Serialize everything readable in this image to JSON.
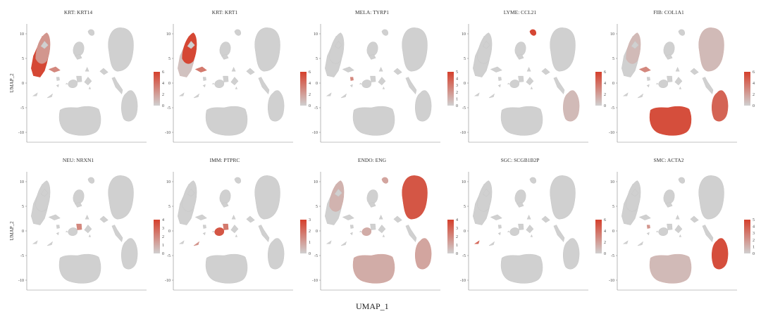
{
  "chart_data": [
    {
      "type": "scatter",
      "title": "KRT: KRT14",
      "ylabel": "UMAP_2",
      "xlim": [
        -15,
        12
      ],
      "ylim": [
        -12,
        12
      ],
      "yticks": [
        10,
        5,
        0,
        -5,
        -10
      ],
      "xticks": [],
      "colorbar_ticks": [
        6,
        4,
        2,
        0
      ],
      "highlight": [
        {
          "cluster": "krt_basal",
          "intensity": 0.95
        },
        {
          "cluster": "krt_spin",
          "intensity": 0.4
        },
        {
          "cluster": "krt_small",
          "intensity": 0.5
        }
      ]
    },
    {
      "type": "scatter",
      "title": "KRT: KRT1",
      "ylabel": "",
      "xlim": [
        -15,
        12
      ],
      "ylim": [
        -12,
        12
      ],
      "yticks": [
        10,
        5,
        0,
        -5,
        -10
      ],
      "xticks": [],
      "colorbar_ticks": [
        6,
        4,
        2,
        0
      ],
      "highlight": [
        {
          "cluster": "krt_spin",
          "intensity": 0.95
        },
        {
          "cluster": "krt_small",
          "intensity": 0.6
        },
        {
          "cluster": "krt_basal",
          "intensity": 0.1
        }
      ]
    },
    {
      "type": "scatter",
      "title": "MELA: TYRP1",
      "ylabel": "",
      "xlim": [
        -15,
        12
      ],
      "ylim": [
        -12,
        12
      ],
      "yticks": [
        10,
        5,
        0,
        -5,
        -10
      ],
      "xticks": [],
      "colorbar_ticks": [
        5,
        4,
        3,
        2,
        1,
        0
      ],
      "highlight": [
        {
          "cluster": "mela",
          "intensity": 0.5
        }
      ]
    },
    {
      "type": "scatter",
      "title": "LYME: CCL21",
      "ylabel": "",
      "xlim": [
        -15,
        12
      ],
      "ylim": [
        -12,
        12
      ],
      "yticks": [
        10,
        5,
        0,
        -5,
        -10
      ],
      "xticks": [],
      "colorbar_ticks": [
        6,
        4,
        2,
        0
      ],
      "highlight": [
        {
          "cluster": "lyme",
          "intensity": 0.95
        },
        {
          "cluster": "smc",
          "intensity": 0.15
        }
      ]
    },
    {
      "type": "scatter",
      "title": "FIB: COL1A1",
      "ylabel": "",
      "xlim": [
        -15,
        12
      ],
      "ylim": [
        -12,
        12
      ],
      "yticks": [
        10,
        5,
        0,
        -5,
        -10
      ],
      "xticks": [],
      "colorbar_ticks": [
        6,
        4,
        2,
        0
      ],
      "highlight": [
        {
          "cluster": "fib",
          "intensity": 0.9
        },
        {
          "cluster": "smc",
          "intensity": 0.75
        },
        {
          "cluster": "endo",
          "intensity": 0.15
        },
        {
          "cluster": "krt_spin",
          "intensity": 0.15
        },
        {
          "cluster": "krt_small",
          "intensity": 0.5
        }
      ]
    },
    {
      "type": "scatter",
      "title": "NEU: NRXN1",
      "ylabel": "UMAP_2",
      "xlim": [
        -15,
        12
      ],
      "ylim": [
        -12,
        12
      ],
      "yticks": [
        10,
        5,
        0,
        -5,
        -10
      ],
      "xticks": [],
      "colorbar_ticks": [
        4,
        3,
        2,
        1,
        0
      ],
      "highlight": [
        {
          "cluster": "neu",
          "intensity": 0.5
        }
      ]
    },
    {
      "type": "scatter",
      "title": "IMM: PTPRC",
      "ylabel": "",
      "xlim": [
        -15,
        12
      ],
      "ylim": [
        -12,
        12
      ],
      "yticks": [
        10,
        5,
        0,
        -5,
        -10
      ],
      "xticks": [],
      "colorbar_ticks": [
        3,
        2,
        1,
        0
      ],
      "highlight": [
        {
          "cluster": "imm",
          "intensity": 0.85
        },
        {
          "cluster": "neu",
          "intensity": 0.6
        },
        {
          "cluster": "lower_spike",
          "intensity": 0.4
        }
      ]
    },
    {
      "type": "scatter",
      "title": "ENDO: ENG",
      "ylabel": "",
      "xlim": [
        -15,
        12
      ],
      "ylim": [
        -12,
        12
      ],
      "yticks": [
        10,
        5,
        0,
        -5,
        -10
      ],
      "xticks": [],
      "colorbar_ticks": [
        4,
        3,
        2,
        1,
        0
      ],
      "highlight": [
        {
          "cluster": "endo",
          "intensity": 0.85
        },
        {
          "cluster": "fib",
          "intensity": 0.25
        },
        {
          "cluster": "smc",
          "intensity": 0.3
        },
        {
          "cluster": "krt_spin",
          "intensity": 0.2
        },
        {
          "cluster": "imm",
          "intensity": 0.25
        },
        {
          "cluster": "lyme",
          "intensity": 0.3
        }
      ]
    },
    {
      "type": "scatter",
      "title": "SGC: SCGB1B2P",
      "ylabel": "",
      "xlim": [
        -15,
        12
      ],
      "ylim": [
        -12,
        12
      ],
      "yticks": [
        10,
        5,
        0,
        -5,
        -10
      ],
      "xticks": [],
      "colorbar_ticks": [
        6,
        4,
        2,
        0
      ],
      "highlight": [
        {
          "cluster": "sgc",
          "intensity": 0.7
        }
      ]
    },
    {
      "type": "scatter",
      "title": "SMC: ACTA2",
      "ylabel": "",
      "xlim": [
        -15,
        12
      ],
      "ylim": [
        -12,
        12
      ],
      "yticks": [
        10,
        5,
        0,
        -5,
        -10
      ],
      "xticks": [],
      "colorbar_ticks": [
        5,
        4,
        3,
        2,
        1,
        0
      ],
      "highlight": [
        {
          "cluster": "smc",
          "intensity": 0.9
        },
        {
          "cluster": "fib",
          "intensity": 0.15
        },
        {
          "cluster": "mela",
          "intensity": 0.4
        }
      ]
    }
  ],
  "xlabel": "UMAP_1",
  "colors": {
    "low": "#d0d0d0",
    "high": "#d5402c",
    "axis": "#888888"
  }
}
